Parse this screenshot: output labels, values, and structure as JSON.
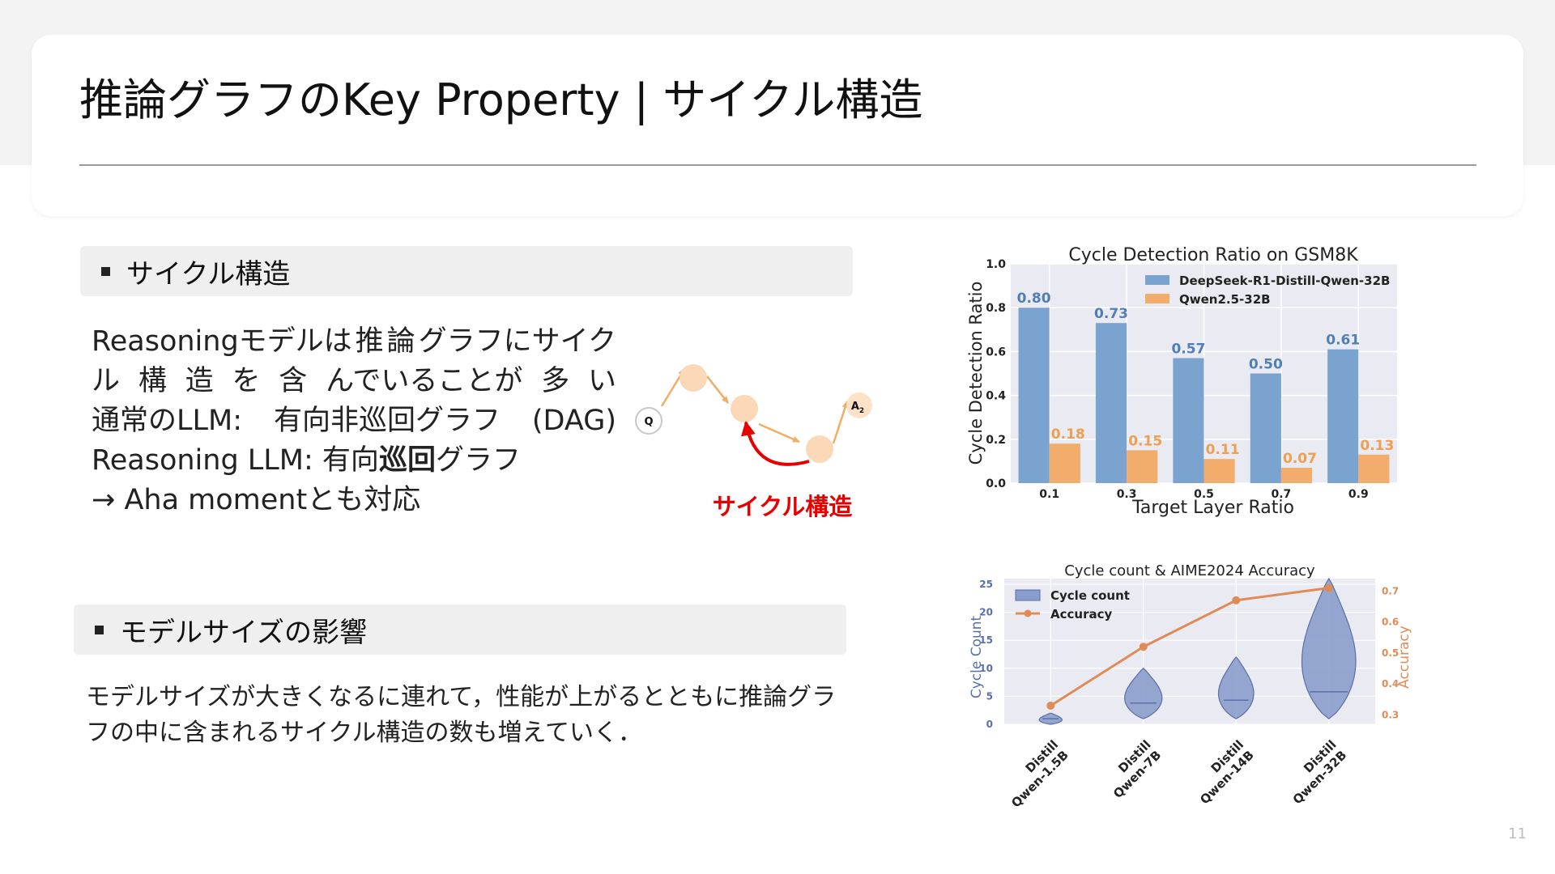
{
  "slide": {
    "title": "推論グラフのKey Property | サイクル構造",
    "page_number": "11",
    "section1": {
      "heading": "サイクル構造",
      "lines": [
        [
          "Reasoningモデルは",
          "推",
          "論",
          "グラフにサイク"
        ],
        [
          "ル",
          "構",
          "造",
          "を",
          "含",
          "んでいることが",
          "多",
          "い"
        ],
        [
          "通常のLLM:",
          "有向非巡回グラフ",
          "(DAG)"
        ]
      ],
      "line4_prefix": "Reasoning LLM: 有向",
      "line4_bold": "巡回",
      "line4_suffix": "グラフ",
      "line5": "→ Aha momentとも対応",
      "diagram": {
        "node_q": "Q",
        "node_a": "A",
        "node_a_sub": "2",
        "cycle_label": "サイクル構造",
        "accent": "#e60000",
        "node_color": "#fbd8b8",
        "edge_color": "#f0ad63"
      }
    },
    "section2": {
      "heading": "モデルサイズの影響",
      "lines": [
        "モデルサイズが大きくなるに連れて，性能が上がるとともに推論グラ",
        "フの中に含まれるサイクル構造の数も増えていく．"
      ]
    }
  },
  "chart_data": [
    {
      "type": "bar",
      "title": "Cycle Detection Ratio on GSM8K",
      "xlabel": "Target Layer Ratio",
      "ylabel": "Cycle Detection Ratio",
      "categories": [
        "0.1",
        "0.3",
        "0.5",
        "0.7",
        "0.9"
      ],
      "ylim": [
        0,
        1.0
      ],
      "yticks": [
        "0.0",
        "0.2",
        "0.4",
        "0.6",
        "0.8",
        "1.0"
      ],
      "grid": true,
      "legend_position": "top-right",
      "series": [
        {
          "name": "DeepSeek-R1-Distill-Qwen-32B",
          "color": "#7ba3d0",
          "label_color": "#4f7fb6",
          "values": [
            0.8,
            0.73,
            0.57,
            0.5,
            0.61
          ],
          "labels": [
            "0.80",
            "0.73",
            "0.57",
            "0.50",
            "0.61"
          ]
        },
        {
          "name": "Qwen2.5-32B",
          "color": "#f2ad6c",
          "label_color": "#ee9f52",
          "values": [
            0.18,
            0.15,
            0.11,
            0.07,
            0.13
          ],
          "labels": [
            "0.18",
            "0.15",
            "0.11",
            "0.07",
            "0.13"
          ]
        }
      ]
    },
    {
      "type": "violin",
      "title": "Cycle count & AIME2024 Accuracy",
      "ylabel": "Cycle Count",
      "y2label": "Accuracy",
      "categories": [
        "Distill\nQwen-1.5B",
        "Distill\nQwen-7B",
        "Distill\nQwen-14B",
        "Distill\nQwen-32B"
      ],
      "ylim": [
        0,
        26
      ],
      "yticks": [
        "0",
        "5",
        "10",
        "15",
        "20",
        "25"
      ],
      "y2lim": [
        0.27,
        0.74
      ],
      "y2ticks": [
        "0.3",
        "0.4",
        "0.5",
        "0.6",
        "0.7"
      ],
      "grid": true,
      "legend_position": "top-left",
      "cycle_count": {
        "name": "Cycle count",
        "color": "#8b9dcc",
        "edge": "#5a6fa6",
        "min": [
          0,
          1,
          1,
          1
        ],
        "max": [
          2,
          10,
          12,
          26
        ],
        "median": [
          1,
          3.8,
          4.3,
          5.8
        ]
      },
      "accuracy": {
        "name": "Accuracy",
        "color": "#e08b55",
        "values": [
          0.33,
          0.52,
          0.67,
          0.71
        ]
      }
    }
  ]
}
